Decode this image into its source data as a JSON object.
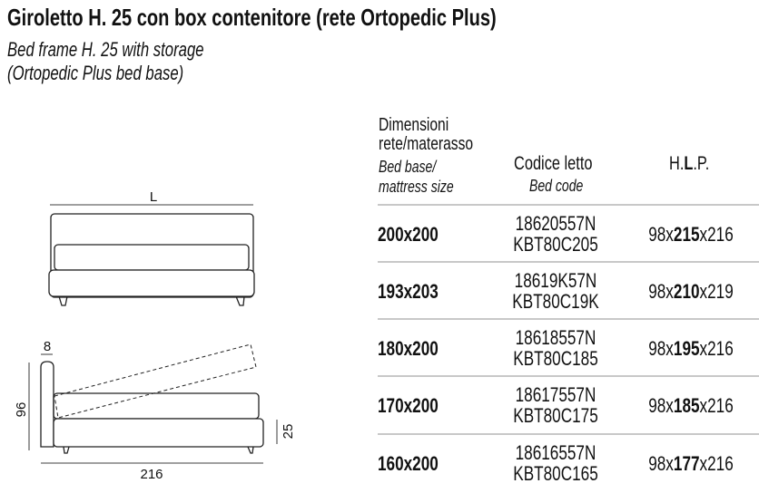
{
  "title": "Giroletto H. 25 con box contenitore (rete Ortopedic Plus)",
  "subtitle_line1": "Bed frame H. 25 with storage",
  "subtitle_line2": "(Ortopedic Plus bed base)",
  "drawing": {
    "width_label": "L",
    "headboard_thickness": "8",
    "height": "96",
    "frame_height": "25",
    "length": "216"
  },
  "table": {
    "headers": {
      "size_it_1": "Dimensioni",
      "size_it_2": "rete/materasso",
      "size_en_1": "Bed base/",
      "size_en_2": "mattress size",
      "code_it": "Codice letto",
      "code_en": "Bed code",
      "hlp_h": "H.",
      "hlp_l": "L",
      "hlp_p": ".P."
    },
    "rows": [
      {
        "size": "200x200",
        "code1": "18620557N",
        "code2": "KBT80C205",
        "h": "98x",
        "l": "215",
        "p": "x216"
      },
      {
        "size": "193x203",
        "code1": "18619K57N",
        "code2": "KBT80C19K",
        "h": "98x",
        "l": "210",
        "p": "x219"
      },
      {
        "size": "180x200",
        "code1": "18618557N",
        "code2": "KBT80C185",
        "h": "98x",
        "l": "195",
        "p": "x216"
      },
      {
        "size": "170x200",
        "code1": "18617557N",
        "code2": "KBT80C175",
        "h": "98x",
        "l": "185",
        "p": "x216"
      },
      {
        "size": "160x200",
        "code1": "18616557N",
        "code2": "KBT80C165",
        "h": "98x",
        "l": "177",
        "p": "x216"
      }
    ]
  }
}
